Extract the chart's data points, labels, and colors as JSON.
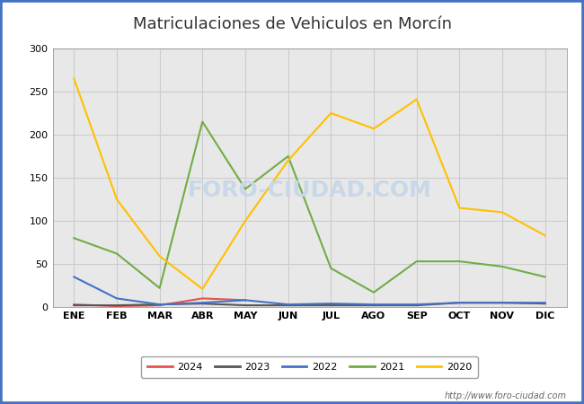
{
  "title": "Matriculaciones de Vehiculos en Morcín",
  "title_color": "#333333",
  "months": [
    "ENE",
    "FEB",
    "MAR",
    "ABR",
    "MAY",
    "JUN",
    "JUL",
    "AGO",
    "SEP",
    "OCT",
    "NOV",
    "DIC"
  ],
  "series_order": [
    "2024",
    "2023",
    "2022",
    "2021",
    "2020"
  ],
  "series": {
    "2024": {
      "color": "#e8534a",
      "data": [
        3,
        1,
        2,
        10,
        8,
        null,
        null,
        null,
        null,
        null,
        null,
        null
      ]
    },
    "2023": {
      "color": "#555555",
      "data": [
        2,
        2,
        3,
        4,
        2,
        2,
        2,
        2,
        2,
        5,
        5,
        4
      ]
    },
    "2022": {
      "color": "#4472c4",
      "data": [
        35,
        10,
        3,
        5,
        8,
        3,
        4,
        3,
        3,
        5,
        5,
        5
      ]
    },
    "2021": {
      "color": "#70ad47",
      "data": [
        80,
        62,
        22,
        215,
        137,
        175,
        45,
        17,
        53,
        53,
        47,
        35
      ]
    },
    "2020": {
      "color": "#ffc000",
      "data": [
        265,
        125,
        59,
        21,
        100,
        170,
        225,
        207,
        241,
        115,
        110,
        83
      ]
    }
  },
  "ylim": [
    0,
    300
  ],
  "yticks": [
    0,
    50,
    100,
    150,
    200,
    250,
    300
  ],
  "grid_color": "#cccccc",
  "plot_bg_color": "#e8e8e8",
  "fig_bg_color": "#ffffff",
  "border_color": "#4472c4",
  "watermark": "FORO-CIUDAD.COM",
  "watermark_color": "#c8d8e8",
  "url": "http://www.foro-ciudad.com",
  "title_fontsize": 13,
  "tick_fontsize": 8,
  "legend_fontsize": 8
}
